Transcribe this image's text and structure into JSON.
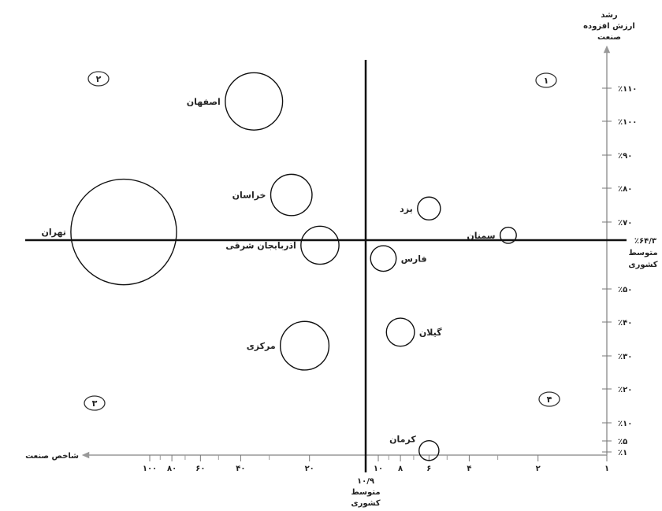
{
  "chart_data": {
    "type": "scatter",
    "subtype": "bubble-quadrant",
    "title": "",
    "x_axis": {
      "label": "شاخص صنعت",
      "direction": "right-to-left",
      "scale": "logarithmic",
      "major_ticks": [
        {
          "value": 100,
          "label": "۱۰۰"
        },
        {
          "value": 80,
          "label": "۸۰"
        },
        {
          "value": 60,
          "label": "۶۰"
        },
        {
          "value": 40,
          "label": "۴۰"
        },
        {
          "value": 20,
          "label": "۲۰"
        },
        {
          "value": 10,
          "label": "۱۰"
        },
        {
          "value": 8,
          "label": "۸"
        },
        {
          "value": 6,
          "label": "۶"
        },
        {
          "value": 4,
          "label": "۴"
        },
        {
          "value": 2,
          "label": "۲"
        },
        {
          "value": 1,
          "label": "۱"
        }
      ],
      "minor_ticks": [
        90,
        70,
        50,
        30,
        9,
        7,
        5,
        3
      ],
      "average": {
        "value": 10.9,
        "label": "۱۰/۹",
        "caption": [
          "متوسط",
          "کشوری"
        ]
      }
    },
    "y_axis": {
      "label": [
        "رشد",
        "ارزش افزوده",
        "صنعت"
      ],
      "ticks": [
        {
          "value": 1,
          "label": "٪۱"
        },
        {
          "value": 5,
          "label": "٪۵"
        },
        {
          "value": 10,
          "label": "٪۱۰"
        },
        {
          "value": 20,
          "label": "٪۲۰"
        },
        {
          "value": 30,
          "label": "٪۳۰"
        },
        {
          "value": 40,
          "label": "٪۴۰"
        },
        {
          "value": 50,
          "label": "٪۵۰"
        },
        {
          "value": 70,
          "label": "٪۷۰"
        },
        {
          "value": 80,
          "label": "٪۸۰"
        },
        {
          "value": 90,
          "label": "٪۹۰"
        },
        {
          "value": 100,
          "label": "٪۱۰۰"
        },
        {
          "value": 110,
          "label": "٪۱۱۰"
        }
      ],
      "average": {
        "value": 64.3,
        "label": "٪۶۴/۳",
        "caption": [
          "متوسط",
          "کشوری"
        ]
      }
    },
    "quadrants": [
      {
        "label": "۱",
        "position": "top-right"
      },
      {
        "label": "۲",
        "position": "top-left"
      },
      {
        "label": "۳",
        "position": "bottom-left"
      },
      {
        "label": "۴",
        "position": "bottom-right"
      }
    ],
    "points": [
      {
        "name": "اصفهان",
        "x": 35,
        "y": 106,
        "size": 2.5
      },
      {
        "name": "خراسان",
        "x": 24,
        "y": 78,
        "size": 1.3
      },
      {
        "name": "تهران",
        "x": 130,
        "y": 67,
        "size": 8.5
      },
      {
        "name": "آذربایجان شرقی",
        "x": 18,
        "y": 63,
        "size": 1.1
      },
      {
        "name": "مرکزی",
        "x": 21,
        "y": 33,
        "size": 1.8
      },
      {
        "name": "یزد",
        "x": 6,
        "y": 74,
        "size": 0.4
      },
      {
        "name": "سمنان",
        "x": 2.7,
        "y": 66,
        "size": 0.2
      },
      {
        "name": "فارس",
        "x": 9.5,
        "y": 59,
        "size": 0.5
      },
      {
        "name": "گیلان",
        "x": 8,
        "y": 37,
        "size": 0.6
      },
      {
        "name": "کرمان",
        "x": 6,
        "y": 1.5,
        "size": 0.3
      }
    ]
  }
}
